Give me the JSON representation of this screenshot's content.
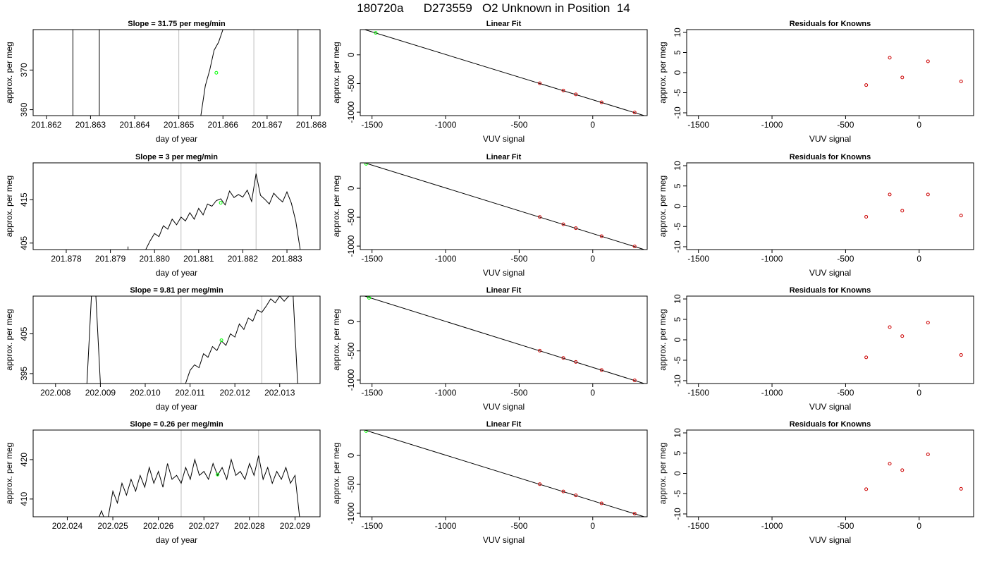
{
  "page": {
    "title": "180720a      D273559   O2 Unknown in Position  14"
  },
  "colors": {
    "trace": "#000000",
    "unknown": "#00ff00",
    "known": "#cc0000",
    "boundary": "#bebebe",
    "fit": "#000000"
  },
  "chart_data": [
    {
      "type": "line",
      "row": 0,
      "col": 0,
      "title": "Slope =  31.75  per meg/min",
      "xlabel": "day of year",
      "ylabel": "approx. per meg",
      "xlim": [
        201.8617,
        201.8682
      ],
      "ylim": [
        358.5,
        380.2
      ],
      "xticks": [
        201.862,
        201.863,
        201.864,
        201.865,
        201.866,
        201.867,
        201.868
      ],
      "xtick_labels": [
        "201.862",
        "201.863",
        "201.864",
        "201.865",
        "201.866",
        "201.867",
        "201.868"
      ],
      "yticks": [
        360,
        370
      ],
      "ytick_labels": [
        "360",
        "370"
      ],
      "vlines": [
        201.865,
        201.8667
      ],
      "segments": [
        {
          "x": [
            201.8626,
            201.8626
          ],
          "y": [
            358.5,
            380.2
          ]
        },
        {
          "x": [
            201.8632,
            201.8632
          ],
          "y": [
            358.5,
            380.2
          ]
        },
        {
          "x": [
            201.8655,
            201.8656,
            201.8657,
            201.8658,
            201.8659,
            201.866
          ],
          "y": [
            358.5,
            366,
            370,
            375,
            377,
            380.2
          ]
        },
        {
          "x": [
            201.8677,
            201.8677
          ],
          "y": [
            380.2,
            358.5
          ]
        }
      ],
      "points": [
        {
          "x": 201.86585,
          "y": 369.3,
          "role": "unknown"
        }
      ]
    },
    {
      "type": "scatter",
      "row": 0,
      "col": 1,
      "title": "Linear Fit",
      "xlabel": "VUV signal",
      "ylabel": "approx. per meg",
      "xlim": [
        -1580,
        370
      ],
      "ylim": [
        -1060,
        440
      ],
      "xticks": [
        -1500,
        -1000,
        -500,
        0
      ],
      "xtick_labels": [
        "-1500",
        "-1000",
        "-500",
        "0"
      ],
      "yticks": [
        -1000,
        -500,
        0
      ],
      "ytick_labels": [
        "-1000",
        "-500",
        "0"
      ],
      "fit_line": {
        "x": [
          -1550,
          350
        ],
        "y": [
          440,
          -1060
        ]
      },
      "points": [
        {
          "x": -1475,
          "y": 383,
          "role": "unknown"
        },
        {
          "x": -360,
          "y": -496,
          "role": "known"
        },
        {
          "x": -200,
          "y": -622,
          "role": "known"
        },
        {
          "x": -115,
          "y": -689,
          "role": "known"
        },
        {
          "x": 60,
          "y": -828,
          "role": "known"
        },
        {
          "x": 285,
          "y": -1005,
          "role": "known"
        }
      ]
    },
    {
      "type": "scatter",
      "row": 0,
      "col": 2,
      "title": "Residuals for Knowns",
      "xlabel": "VUV signal",
      "ylabel": "approx. per meg",
      "xlim": [
        -1580,
        370
      ],
      "ylim": [
        -10.7,
        10.7
      ],
      "xticks": [
        -1500,
        -1000,
        -500,
        0
      ],
      "xtick_labels": [
        "-1500",
        "-1000",
        "-500",
        "0"
      ],
      "yticks": [
        -10,
        -5,
        0,
        5,
        10
      ],
      "ytick_labels": [
        "-10",
        "-5",
        "0",
        "5",
        "10"
      ],
      "points": [
        {
          "x": -360,
          "y": -3.1,
          "role": "known"
        },
        {
          "x": -200,
          "y": 3.7,
          "role": "known"
        },
        {
          "x": -115,
          "y": -1.2,
          "role": "known"
        },
        {
          "x": 60,
          "y": 2.8,
          "role": "known"
        },
        {
          "x": 285,
          "y": -2.2,
          "role": "known"
        }
      ]
    },
    {
      "type": "line",
      "row": 1,
      "col": 0,
      "title": "Slope =  3  per meg/min",
      "xlabel": "day of year",
      "ylabel": "approx. per meg",
      "xlim": [
        201.87725,
        201.88375
      ],
      "ylim": [
        403.5,
        423.5
      ],
      "xticks": [
        201.878,
        201.879,
        201.88,
        201.881,
        201.882,
        201.883
      ],
      "xtick_labels": [
        "201.878",
        "201.879",
        "201.880",
        "201.881",
        "201.882",
        "201.883"
      ],
      "yticks": [
        405,
        415
      ],
      "ytick_labels": [
        "405",
        "415"
      ],
      "vlines": [
        201.8806,
        201.8823
      ],
      "segments": [
        {
          "x": [
            201.8794,
            201.8794
          ],
          "y": [
            403.5,
            404.2
          ]
        },
        {
          "x": [
            201.8798,
            201.8799,
            201.88,
            201.8801,
            201.8802,
            201.8803,
            201.8804,
            201.8805,
            201.8806,
            201.8807,
            201.8808,
            201.8809,
            201.881,
            201.8811,
            201.8812,
            201.8813,
            201.8814,
            201.8815,
            201.8816,
            201.8817,
            201.8818,
            201.8819,
            201.882,
            201.8821,
            201.8822,
            201.8823,
            201.8824,
            201.8825,
            201.8826,
            201.8827,
            201.8828,
            201.8829,
            201.883,
            201.8831,
            201.8832,
            201.8833
          ],
          "y": [
            403.5,
            405.5,
            407.2,
            406.5,
            409,
            408.2,
            410.5,
            409.2,
            411,
            410.1,
            412,
            410.5,
            413,
            411.5,
            414,
            413.5,
            414.8,
            415.2,
            413.8,
            417,
            415.5,
            416.2,
            415.6,
            417.2,
            414.6,
            421,
            416,
            415.1,
            414,
            416.5,
            415.4,
            414.5,
            416.8,
            414.2,
            410,
            403.5
          ]
        }
      ],
      "points": [
        {
          "x": 201.8815,
          "y": 414.3,
          "role": "unknown"
        }
      ]
    },
    {
      "type": "scatter",
      "row": 1,
      "col": 1,
      "title": "Linear Fit",
      "xlabel": "VUV signal",
      "ylabel": "approx. per meg",
      "xlim": [
        -1580,
        370
      ],
      "ylim": [
        -1060,
        440
      ],
      "xticks": [
        -1500,
        -1000,
        -500,
        0
      ],
      "xtick_labels": [
        "-1500",
        "-1000",
        "-500",
        "0"
      ],
      "yticks": [
        -1000,
        -500,
        0
      ],
      "ytick_labels": [
        "-1000",
        "-500",
        "0"
      ],
      "fit_line": {
        "x": [
          -1550,
          350
        ],
        "y": [
          440,
          -1060
        ]
      },
      "points": [
        {
          "x": -1540,
          "y": 423,
          "role": "unknown"
        },
        {
          "x": -360,
          "y": -496,
          "role": "known"
        },
        {
          "x": -200,
          "y": -622,
          "role": "known"
        },
        {
          "x": -115,
          "y": -689,
          "role": "known"
        },
        {
          "x": 60,
          "y": -828,
          "role": "known"
        },
        {
          "x": 285,
          "y": -1005,
          "role": "known"
        }
      ]
    },
    {
      "type": "scatter",
      "row": 1,
      "col": 2,
      "title": "Residuals for Knowns",
      "xlabel": "VUV signal",
      "ylabel": "approx. per meg",
      "xlim": [
        -1580,
        370
      ],
      "ylim": [
        -10.7,
        10.7
      ],
      "xticks": [
        -1500,
        -1000,
        -500,
        0
      ],
      "xtick_labels": [
        "-1500",
        "-1000",
        "-500",
        "0"
      ],
      "yticks": [
        -10,
        -5,
        0,
        5,
        10
      ],
      "ytick_labels": [
        "-10",
        "-5",
        "0",
        "5",
        "10"
      ],
      "points": [
        {
          "x": -360,
          "y": -2.6,
          "role": "known"
        },
        {
          "x": -200,
          "y": 2.9,
          "role": "known"
        },
        {
          "x": -115,
          "y": -1.1,
          "role": "known"
        },
        {
          "x": 60,
          "y": 2.9,
          "role": "known"
        },
        {
          "x": 285,
          "y": -2.3,
          "role": "known"
        }
      ]
    },
    {
      "type": "line",
      "row": 2,
      "col": 0,
      "title": "Slope =  9.81  per meg/min",
      "xlabel": "day of year",
      "ylabel": "approx. per meg",
      "xlim": [
        202.0075,
        202.0139
      ],
      "ylim": [
        392.5,
        414.5
      ],
      "xticks": [
        202.008,
        202.009,
        202.01,
        202.011,
        202.012,
        202.013
      ],
      "xtick_labels": [
        "202.008",
        "202.009",
        "202.010",
        "202.011",
        "202.012",
        "202.013"
      ],
      "yticks": [
        395,
        405
      ],
      "ytick_labels": [
        "395",
        "405"
      ],
      "vlines": [
        202.0108,
        202.0126
      ],
      "segments": [
        {
          "x": [
            202.0087,
            202.0088,
            202.0089,
            202.009
          ],
          "y": [
            392.5,
            414.5,
            414.5,
            392.5
          ]
        },
        {
          "x": [
            202.0109,
            202.011,
            202.0111,
            202.0112,
            202.0113,
            202.0114,
            202.0115,
            202.0116,
            202.0117,
            202.0118,
            202.0119,
            202.012,
            202.0121,
            202.0122,
            202.0123,
            202.0124,
            202.0125,
            202.0126,
            202.0127,
            202.0128,
            202.0129,
            202.013,
            202.0131,
            202.0132,
            202.0133,
            202.0134
          ],
          "y": [
            392.5,
            395.8,
            397.2,
            396.5,
            400,
            399.1,
            401.8,
            400.8,
            403.2,
            402.1,
            405,
            404.2,
            407.5,
            406.1,
            409,
            408.2,
            411,
            410.4,
            412,
            413.8,
            412.8,
            414.5,
            413.2,
            414.5,
            414.5,
            392.5
          ]
        }
      ],
      "points": [
        {
          "x": 202.0117,
          "y": 403.4,
          "role": "unknown"
        }
      ]
    },
    {
      "type": "scatter",
      "row": 2,
      "col": 1,
      "title": "Linear Fit",
      "xlabel": "VUV signal",
      "ylabel": "approx. per meg",
      "xlim": [
        -1580,
        370
      ],
      "ylim": [
        -1060,
        440
      ],
      "xticks": [
        -1500,
        -1000,
        -500,
        0
      ],
      "xtick_labels": [
        "-1500",
        "-1000",
        "-500",
        "0"
      ],
      "yticks": [
        -1000,
        -500,
        0
      ],
      "ytick_labels": [
        "-1000",
        "-500",
        "0"
      ],
      "fit_line": {
        "x": [
          -1550,
          350
        ],
        "y": [
          440,
          -1060
        ]
      },
      "points": [
        {
          "x": -1520,
          "y": 410,
          "role": "unknown"
        },
        {
          "x": -360,
          "y": -496,
          "role": "known"
        },
        {
          "x": -200,
          "y": -622,
          "role": "known"
        },
        {
          "x": -115,
          "y": -689,
          "role": "known"
        },
        {
          "x": 60,
          "y": -828,
          "role": "known"
        },
        {
          "x": 285,
          "y": -1005,
          "role": "known"
        }
      ]
    },
    {
      "type": "scatter",
      "row": 2,
      "col": 2,
      "title": "Residuals for Knowns",
      "xlabel": "VUV signal",
      "ylabel": "approx. per meg",
      "xlim": [
        -1580,
        370
      ],
      "ylim": [
        -10.7,
        10.7
      ],
      "xticks": [
        -1500,
        -1000,
        -500,
        0
      ],
      "xtick_labels": [
        "-1500",
        "-1000",
        "-500",
        "0"
      ],
      "yticks": [
        -10,
        -5,
        0,
        5,
        10
      ],
      "ytick_labels": [
        "-10",
        "-5",
        "0",
        "5",
        "10"
      ],
      "points": [
        {
          "x": -360,
          "y": -4.3,
          "role": "known"
        },
        {
          "x": -200,
          "y": 3.1,
          "role": "known"
        },
        {
          "x": -115,
          "y": 0.9,
          "role": "known"
        },
        {
          "x": 60,
          "y": 4.2,
          "role": "known"
        },
        {
          "x": 285,
          "y": -3.7,
          "role": "known"
        }
      ]
    },
    {
      "type": "line",
      "row": 3,
      "col": 0,
      "title": "Slope =  0.26  per meg/min",
      "xlabel": "day of year",
      "ylabel": "approx. per meg",
      "xlim": [
        202.02325,
        202.02955
      ],
      "ylim": [
        405.5,
        427.5
      ],
      "xticks": [
        202.024,
        202.025,
        202.026,
        202.027,
        202.028,
        202.029
      ],
      "xtick_labels": [
        "202.024",
        "202.025",
        "202.026",
        "202.027",
        "202.028",
        "202.029"
      ],
      "yticks": [
        410,
        420
      ],
      "ytick_labels": [
        "410",
        "420"
      ],
      "vlines": [
        202.0265,
        202.0282
      ],
      "segments": [
        {
          "x": [
            202.0247,
            202.02475,
            202.0248
          ],
          "y": [
            405.5,
            407,
            405.5
          ]
        },
        {
          "x": [
            202.0249,
            202.025,
            202.0251,
            202.0252,
            202.0253,
            202.0254,
            202.0255,
            202.0256,
            202.0257,
            202.0258,
            202.0259,
            202.026,
            202.0261,
            202.0262,
            202.0263,
            202.0264,
            202.0265,
            202.0266,
            202.0267,
            202.0268,
            202.0269,
            202.027,
            202.0271,
            202.0272,
            202.0273,
            202.0274,
            202.0275,
            202.0276,
            202.0277,
            202.0278,
            202.0279,
            202.028,
            202.0281,
            202.0282,
            202.0283,
            202.0284,
            202.0285,
            202.0286,
            202.0287,
            202.0288,
            202.0289,
            202.029,
            202.0291
          ],
          "y": [
            405.5,
            412,
            409,
            414,
            411,
            415,
            412,
            416,
            413,
            418,
            414,
            417,
            413,
            419,
            415,
            416,
            414,
            418,
            415,
            420,
            416,
            417,
            415,
            419,
            416,
            418,
            415,
            420,
            416,
            417,
            415,
            419,
            416,
            421,
            415,
            418,
            414,
            417,
            415,
            418,
            414,
            416,
            405.5
          ]
        }
      ],
      "points": [
        {
          "x": 202.0273,
          "y": 416.2,
          "role": "unknown"
        }
      ]
    },
    {
      "type": "scatter",
      "row": 3,
      "col": 1,
      "title": "Linear Fit",
      "xlabel": "VUV signal",
      "ylabel": "approx. per meg",
      "xlim": [
        -1580,
        370
      ],
      "ylim": [
        -1060,
        440
      ],
      "xticks": [
        -1500,
        -1000,
        -500,
        0
      ],
      "xtick_labels": [
        "-1500",
        "-1000",
        "-500",
        "0"
      ],
      "yticks": [
        -1000,
        -500,
        0
      ],
      "ytick_labels": [
        "-1000",
        "-500",
        "0"
      ],
      "fit_line": {
        "x": [
          -1550,
          350
        ],
        "y": [
          440,
          -1060
        ]
      },
      "points": [
        {
          "x": -1540,
          "y": 423,
          "role": "unknown"
        },
        {
          "x": -360,
          "y": -496,
          "role": "known"
        },
        {
          "x": -200,
          "y": -622,
          "role": "known"
        },
        {
          "x": -115,
          "y": -689,
          "role": "known"
        },
        {
          "x": 60,
          "y": -828,
          "role": "known"
        },
        {
          "x": 285,
          "y": -1005,
          "role": "known"
        }
      ]
    },
    {
      "type": "scatter",
      "row": 3,
      "col": 2,
      "title": "Residuals for Knowns",
      "xlabel": "VUV signal",
      "ylabel": "approx. per meg",
      "xlim": [
        -1580,
        370
      ],
      "ylim": [
        -10.7,
        10.7
      ],
      "xticks": [
        -1500,
        -1000,
        -500,
        0
      ],
      "xtick_labels": [
        "-1500",
        "-1000",
        "-500",
        "0"
      ],
      "yticks": [
        -10,
        -5,
        0,
        5,
        10
      ],
      "ytick_labels": [
        "-10",
        "-5",
        "0",
        "5",
        "10"
      ],
      "points": [
        {
          "x": -360,
          "y": -3.9,
          "role": "known"
        },
        {
          "x": -200,
          "y": 2.4,
          "role": "known"
        },
        {
          "x": -115,
          "y": 0.8,
          "role": "known"
        },
        {
          "x": 60,
          "y": 4.7,
          "role": "known"
        },
        {
          "x": 285,
          "y": -3.8,
          "role": "known"
        }
      ]
    }
  ]
}
